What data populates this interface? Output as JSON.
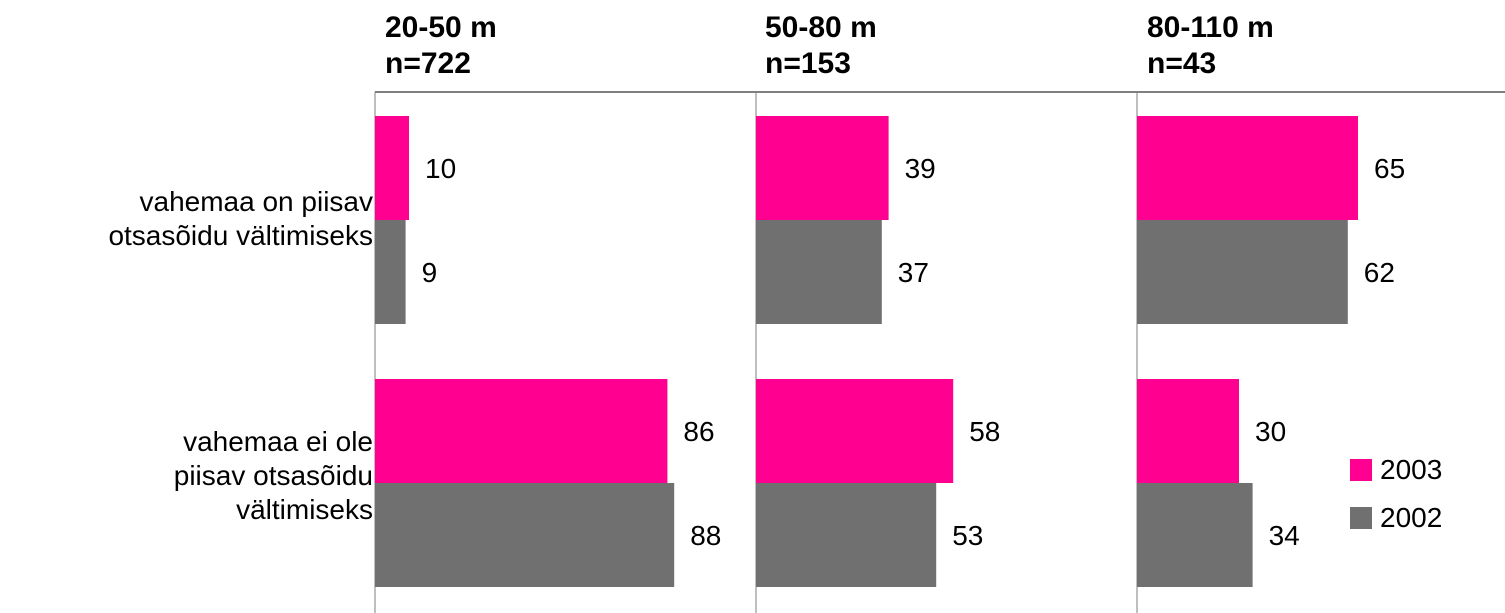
{
  "colors": {
    "2003": "#ff0090",
    "2002": "#707070",
    "axis": "#7f7f7f"
  },
  "category_labels": [
    [
      "vahemaa on piisav",
      "otsasõidu vältimiseks"
    ],
    [
      "vahemaa ei ole",
      "piisav otsasõidu",
      "vältimiseks"
    ]
  ],
  "panels": [
    {
      "line1": "20-50 m",
      "line2": "n=722"
    },
    {
      "line1": "50-80 m",
      "line2": "n=153"
    },
    {
      "line1": "80-110 m",
      "line2": "n=43"
    }
  ],
  "legend": [
    {
      "label": "2003",
      "color_key": "2003"
    },
    {
      "label": "2002",
      "color_key": "2002"
    }
  ],
  "chart_data": {
    "type": "bar",
    "orientation": "horizontal",
    "categories": [
      "vahemaa on piisav otsasõidu vältimiseks",
      "vahemaa ei ole piisav otsasõidu vältimiseks"
    ],
    "panels": [
      {
        "title": "20-50 m n=722",
        "series": [
          {
            "name": "2003",
            "values": [
              10,
              86
            ]
          },
          {
            "name": "2002",
            "values": [
              9,
              88
            ]
          }
        ]
      },
      {
        "title": "50-80 m n=153",
        "series": [
          {
            "name": "2003",
            "values": [
              39,
              58
            ]
          },
          {
            "name": "2002",
            "values": [
              37,
              53
            ]
          }
        ]
      },
      {
        "title": "80-110 m n=43",
        "series": [
          {
            "name": "2003",
            "values": [
              65,
              30
            ]
          },
          {
            "name": "2002",
            "values": [
              62,
              34
            ]
          }
        ]
      }
    ],
    "xlim": [
      0,
      100
    ],
    "grid": false,
    "legend_position": "right"
  }
}
